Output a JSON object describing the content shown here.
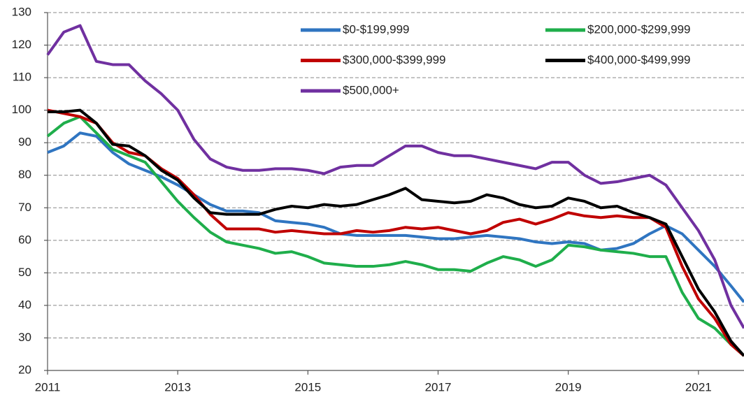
{
  "chart_data": {
    "type": "line",
    "x": [
      2011,
      2011.25,
      2011.5,
      2011.75,
      2012,
      2012.25,
      2012.5,
      2012.75,
      2013,
      2013.25,
      2013.5,
      2013.75,
      2014,
      2014.25,
      2014.5,
      2014.75,
      2015,
      2015.25,
      2015.5,
      2015.75,
      2016,
      2016.25,
      2016.5,
      2016.75,
      2017,
      2017.25,
      2017.5,
      2017.75,
      2018,
      2018.25,
      2018.5,
      2018.75,
      2019,
      2019.25,
      2019.5,
      2019.75,
      2020,
      2020.25,
      2020.5,
      2020.75,
      2021,
      2021.25,
      2021.5,
      2021.7
    ],
    "series": [
      {
        "name": "$0-$199,999",
        "color": "#2f75c1",
        "values": [
          87,
          89,
          93,
          92,
          87,
          83.5,
          81.5,
          79.5,
          77,
          74,
          71,
          69,
          69,
          68.5,
          66,
          65.5,
          65,
          64,
          62,
          61.5,
          61.5,
          61.5,
          61.5,
          61,
          60.5,
          60.5,
          61,
          61.5,
          61,
          60.5,
          59.5,
          59,
          59.5,
          59,
          57,
          57.5,
          59,
          62,
          64.5,
          62,
          57,
          52,
          46,
          41
        ]
      },
      {
        "name": "$200,000-$299,999",
        "color": "#1fae4b",
        "values": [
          92,
          96,
          98,
          93,
          88,
          86,
          84,
          78,
          72,
          67,
          62.5,
          59.5,
          58.5,
          57.5,
          56,
          56.5,
          55,
          53,
          52.5,
          52,
          52,
          52.5,
          53.5,
          52.5,
          51,
          51,
          50.5,
          53,
          55,
          54,
          52,
          54,
          58.5,
          58,
          57,
          56.5,
          56,
          55,
          55,
          44,
          36,
          33,
          28,
          24.5
        ]
      },
      {
        "name": "$300,000-$399,999",
        "color": "#c00000",
        "values": [
          100,
          99,
          98,
          96,
          90,
          87,
          86,
          82,
          79,
          74,
          68,
          63.5,
          63.5,
          63.5,
          62.5,
          63,
          62.5,
          62,
          62,
          63,
          62.5,
          63,
          64,
          63.5,
          64,
          63,
          62,
          63,
          65.5,
          66.5,
          65,
          66.5,
          68.5,
          67.5,
          67,
          67.5,
          67,
          67,
          64,
          52,
          42,
          36,
          28,
          24.5
        ]
      },
      {
        "name": "$400,000-$499,999",
        "color": "#000000",
        "values": [
          99.5,
          99.5,
          100,
          96,
          89.5,
          89,
          86,
          81.5,
          78.5,
          73,
          68.5,
          68,
          68,
          68,
          69.5,
          70.5,
          70,
          71,
          70.5,
          71,
          72.5,
          74,
          76,
          72.5,
          72,
          71.5,
          72,
          74,
          73,
          71,
          70,
          70.5,
          73,
          72,
          70,
          70.5,
          68.5,
          67,
          65,
          55,
          45,
          38,
          29,
          24.5
        ]
      },
      {
        "name": "$500,000+",
        "color": "#7030a0",
        "values": [
          117,
          124,
          126,
          115,
          114,
          114,
          109,
          105,
          100,
          91,
          85,
          82.5,
          81.5,
          81.5,
          82,
          82,
          81.5,
          80.5,
          82.5,
          83,
          83,
          86,
          89,
          89,
          87,
          86,
          86,
          85,
          84,
          83,
          82,
          84,
          84,
          80,
          77.5,
          78,
          79,
          80,
          77,
          70,
          63,
          54,
          40,
          33
        ]
      }
    ],
    "xlim": [
      2011,
      2021.7
    ],
    "xticks": [
      2011,
      2013,
      2015,
      2017,
      2019,
      2021
    ],
    "ylim": [
      20,
      130
    ],
    "yticks": [
      20,
      30,
      40,
      50,
      60,
      70,
      80,
      90,
      100,
      110,
      120,
      130
    ],
    "grid": true,
    "legend": "upper right"
  }
}
